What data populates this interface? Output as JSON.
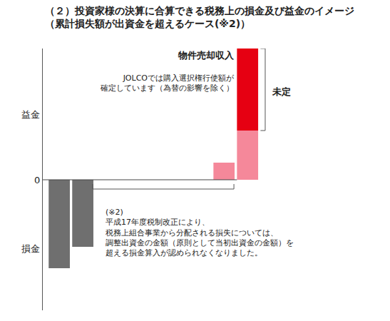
{
  "chart_data": {
    "type": "bar",
    "title": "（２）投資家様の決算に合算できる税務上の損金及び益金のイメージ\n（累計損失額が出資金を超えるケース(※2)）",
    "categories": [
      null,
      null,
      null,
      null,
      null,
      null,
      null,
      null,
      null
    ],
    "series": [
      {
        "color": "#6f6f6f",
        "values": [
          -12.4,
          -9.4,
          null,
          null,
          null,
          null,
          null,
          null,
          null
        ]
      },
      {
        "color": "#f5889a",
        "values": [
          null,
          null,
          null,
          null,
          null,
          null,
          null,
          2.4,
          6.9
        ]
      },
      {
        "color": "#e60012",
        "values": [
          null,
          null,
          null,
          null,
          null,
          null,
          null,
          null,
          11.5
        ]
      }
    ],
    "stacked": true,
    "ylim": [
      -18.3,
      18.4
    ],
    "yticks": [
      {
        "value": 9.2,
        "label": "益金"
      },
      0,
      {
        "value": -9.6,
        "label": "損金"
      }
    ],
    "tick_labels": "y",
    "grid": false,
    "annotations": [
      "物件売却収入",
      "JOLCOでは購入選択権行使額が\n確定しています（為替の影響を除く）",
      "未定",
      "(※2)\n平成17年度税制改正により、\n税務上組合事業から分配される損失については、\n調整出資金の金額（原則として当初出資金の金額）を\n超える損金算入が認められなくなりました。"
    ]
  }
}
